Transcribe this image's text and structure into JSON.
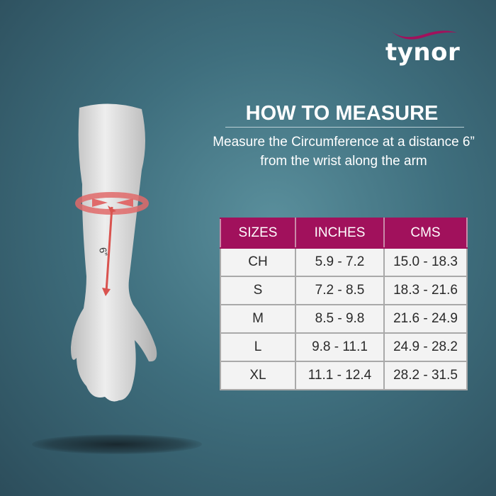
{
  "brand": {
    "logo_text": "tynor",
    "accent": "#a1115c"
  },
  "heading": {
    "title": "HOW TO MEASURE",
    "description": "Measure  the Circumference at a distance 6” from the wrist along the arm"
  },
  "illustration": {
    "measure_label": "6”"
  },
  "size_chart": {
    "headers": [
      "SIZES",
      "INCHES",
      "CMS"
    ],
    "rows": [
      [
        "CH",
        "5.9 - 7.2",
        "15.0 - 18.3"
      ],
      [
        "S",
        "7.2 - 8.5",
        "18.3 - 21.6"
      ],
      [
        "M",
        "8.5 - 9.8",
        "21.6 - 24.9"
      ],
      [
        "L",
        "9.8 - 11.1",
        "24.9 - 28.2"
      ],
      [
        "XL",
        "11.1 - 12.4",
        "28.2 - 31.5"
      ]
    ]
  }
}
